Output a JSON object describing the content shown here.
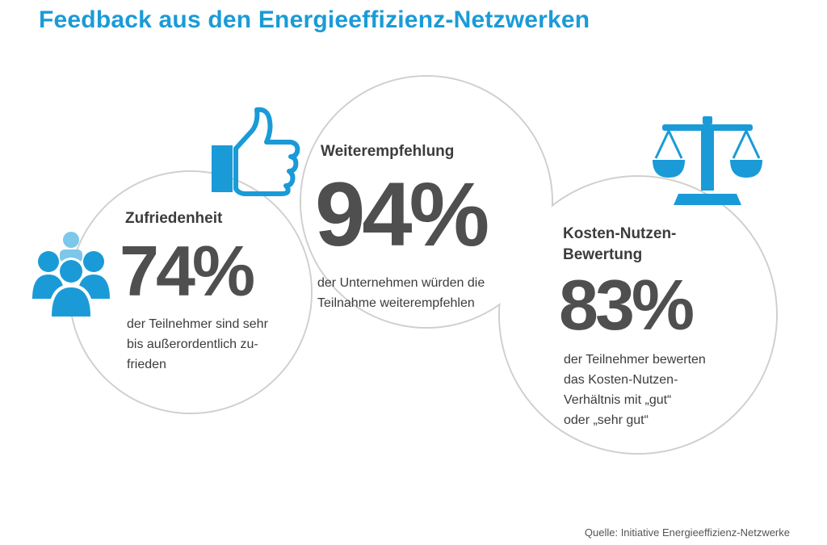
{
  "title": "Feedback aus den Energieeffizienz-Netzwerken",
  "colors": {
    "accent": "#1a9bd7",
    "accent_light": "#7cc7ea",
    "number": "#4f4f4f",
    "text": "#3c3c3c",
    "outline": "#cfcfcf",
    "source": "#555555"
  },
  "cards": [
    {
      "icon": "people-group-icon",
      "label": "Zufriedenheit",
      "value": "74",
      "unit": "%",
      "description": [
        "der Teilnehmer sind sehr",
        "bis außerordentlich zu-",
        "frieden"
      ]
    },
    {
      "icon": "thumbs-up-icon",
      "label": "Weiterempfehlung",
      "value": "94",
      "unit": "%",
      "description": [
        "der Unternehmen würden die",
        "Teilnahme weiterempfehlen"
      ]
    },
    {
      "icon": "balance-scale-icon",
      "label": [
        "Kosten-Nutzen-",
        "Bewertung"
      ],
      "value": "83",
      "unit": "%",
      "description": [
        "der Teilnehmer bewerten",
        "das Kosten-Nutzen-",
        "Verhältnis mit „gut“",
        "oder „sehr gut“"
      ]
    }
  ],
  "source": "Quelle: Initiative Energieeffizienz-Netzwerke"
}
